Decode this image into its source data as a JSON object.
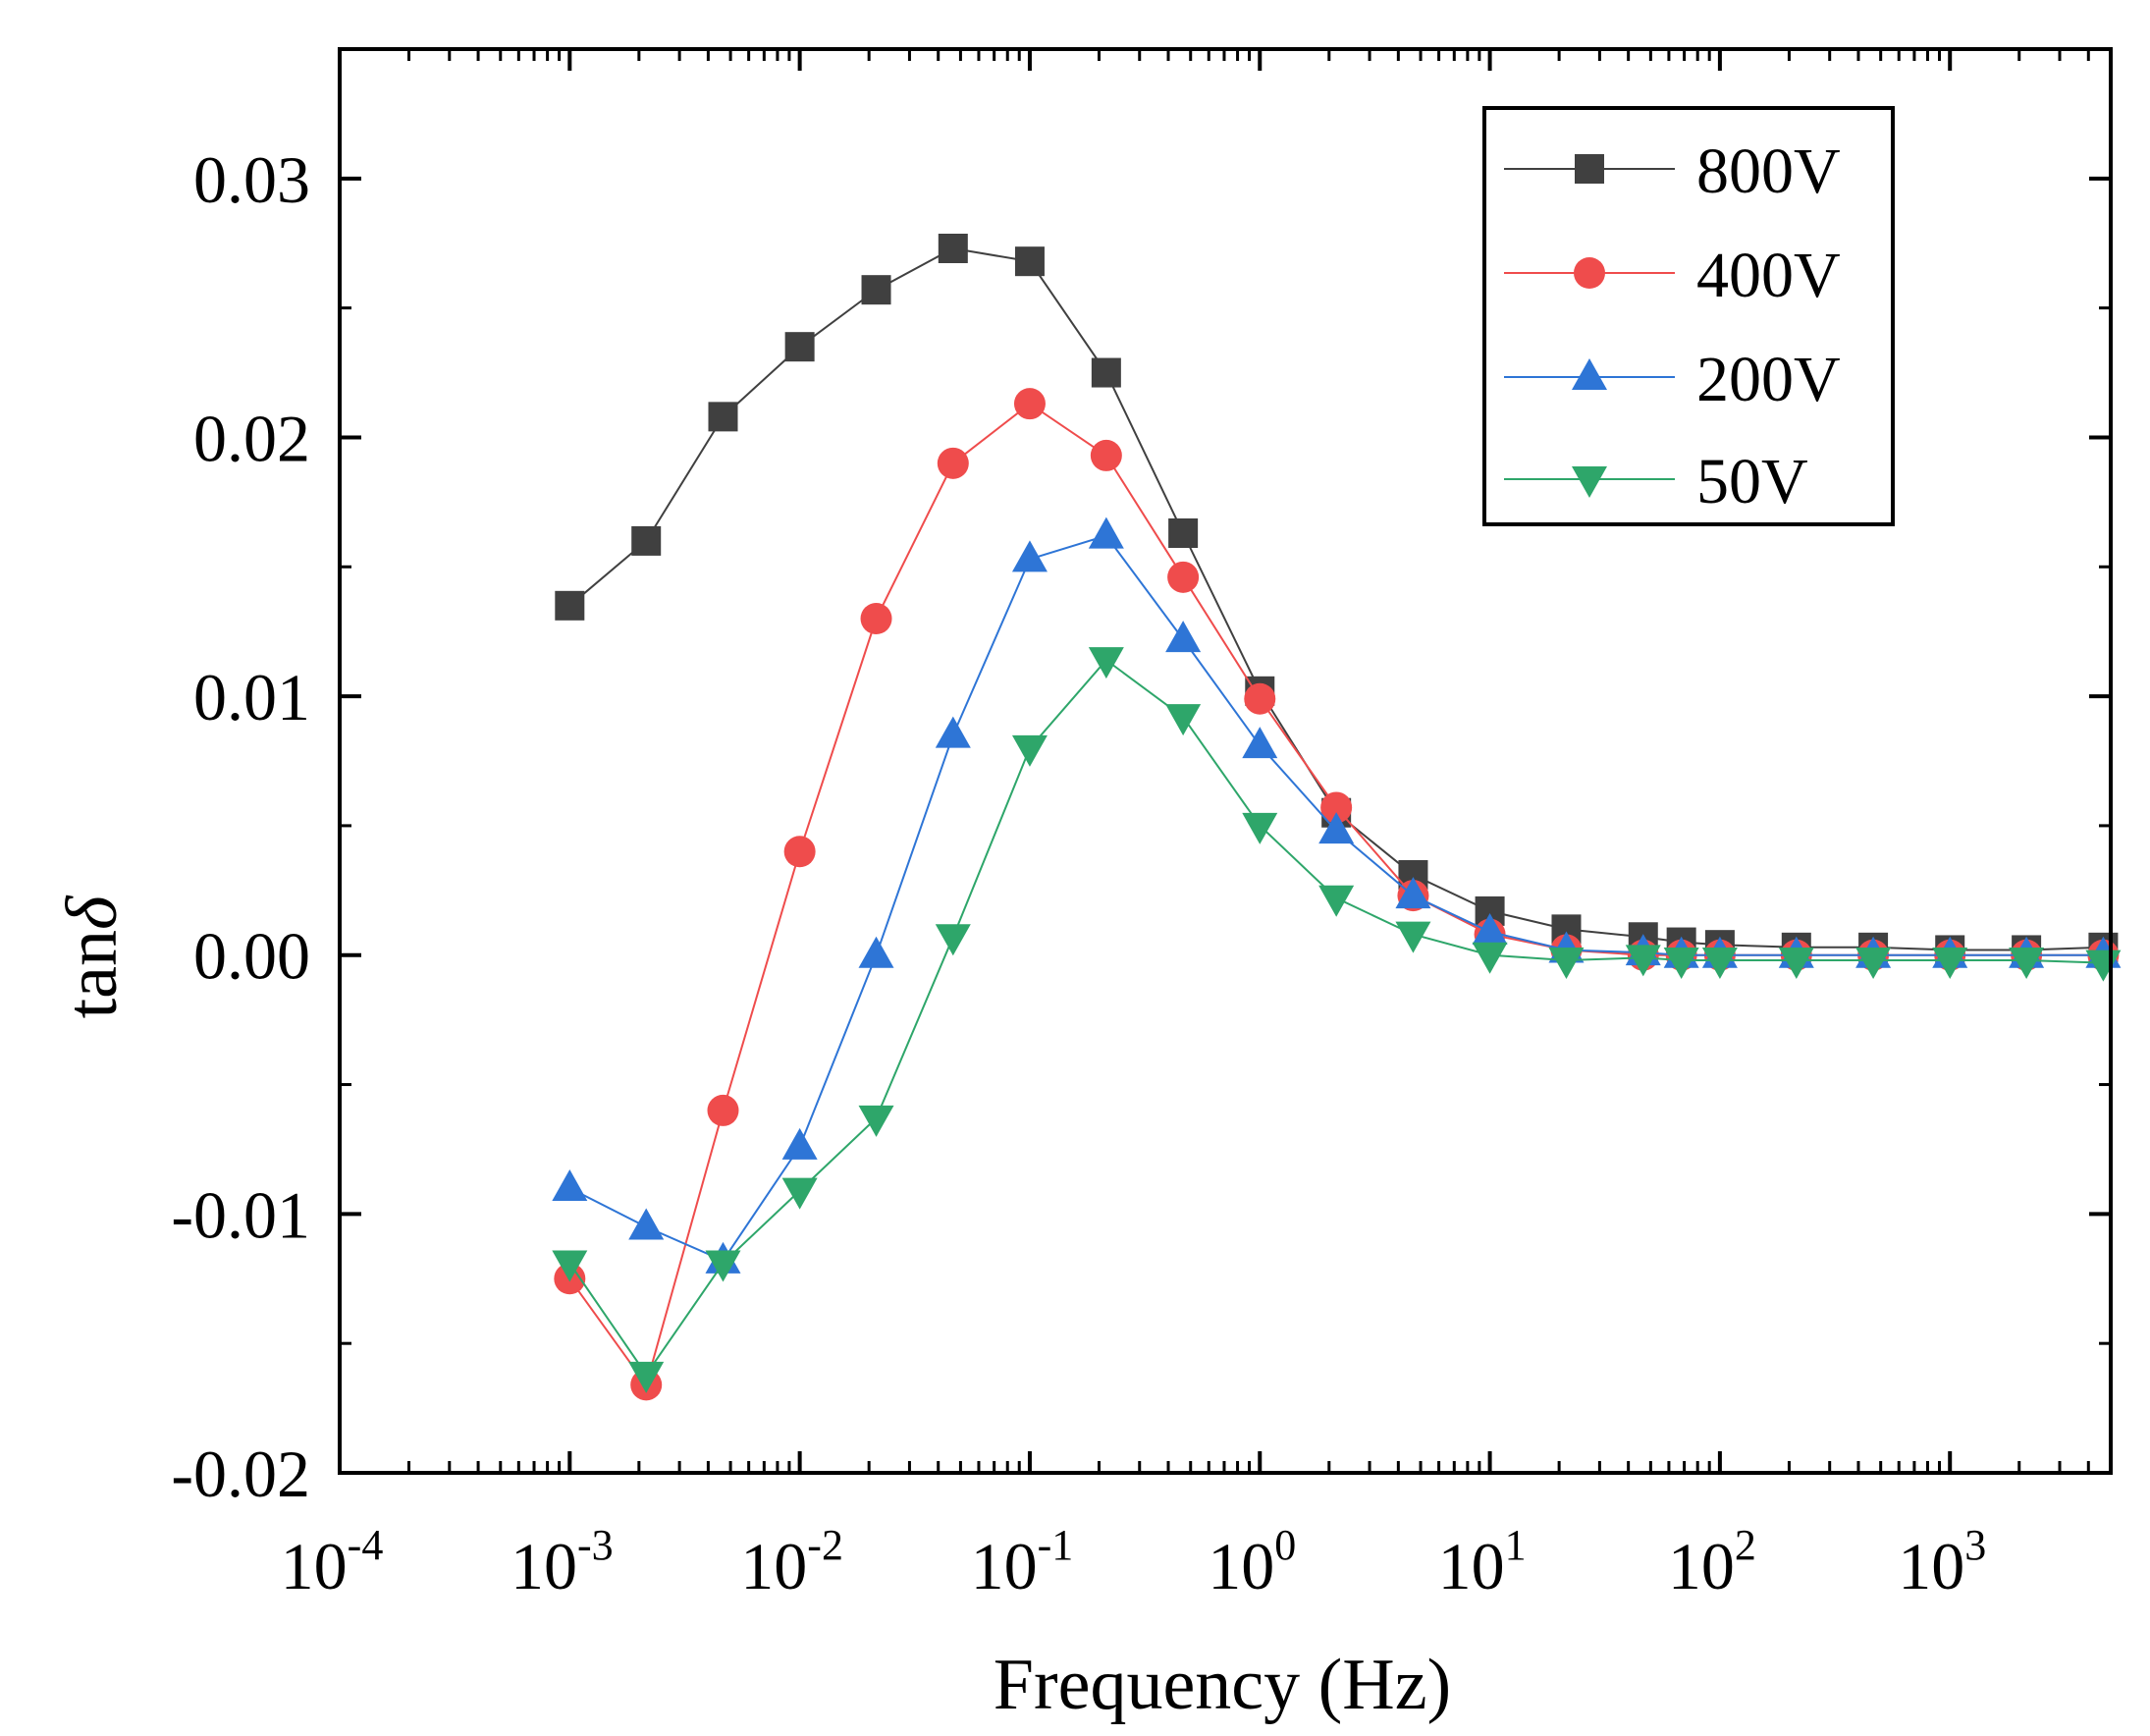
{
  "chart_data": {
    "type": "line",
    "xscale": "log",
    "xlabel": "Frequency (Hz)",
    "ylabel_main": "tan",
    "ylabel_italic": "δ",
    "xlim": [
      0.0001,
      5000
    ],
    "ylim": [
      -0.02,
      0.035
    ],
    "yticks": [
      {
        "value": -0.02,
        "label": "-0.02"
      },
      {
        "value": -0.01,
        "label": "-0.01"
      },
      {
        "value": 0.0,
        "label": "0.00"
      },
      {
        "value": 0.01,
        "label": "0.01"
      },
      {
        "value": 0.02,
        "label": "0.02"
      },
      {
        "value": 0.03,
        "label": "0.03"
      }
    ],
    "xticks": [
      {
        "value": 0.0001,
        "base": "10",
        "exp": "-4"
      },
      {
        "value": 0.001,
        "base": "10",
        "exp": "-3"
      },
      {
        "value": 0.01,
        "base": "10",
        "exp": "-2"
      },
      {
        "value": 0.1,
        "base": "10",
        "exp": "-1"
      },
      {
        "value": 1,
        "base": "10",
        "exp": "0"
      },
      {
        "value": 10,
        "base": "10",
        "exp": "1"
      },
      {
        "value": 100,
        "base": "10",
        "exp": "2"
      },
      {
        "value": 1000,
        "base": "10",
        "exp": "3"
      }
    ],
    "x": [
      0.001,
      0.00215,
      0.00464,
      0.01,
      0.0215,
      0.0464,
      0.1,
      0.215,
      0.464,
      1,
      2.15,
      4.64,
      10,
      21.5,
      46.4,
      68,
      100,
      215,
      464,
      1000,
      2150,
      4640
    ],
    "legend_position": "top-right",
    "series": [
      {
        "name": "800V",
        "color": "#404040",
        "marker": "square",
        "values": [
          0.0135,
          0.016,
          0.0208,
          0.0235,
          0.0257,
          0.0273,
          0.0268,
          0.0225,
          0.0163,
          0.0102,
          0.0055,
          0.0031,
          0.0017,
          0.001,
          0.0007,
          0.0005,
          0.0004,
          0.0003,
          0.0003,
          0.0002,
          0.0002,
          0.0003
        ]
      },
      {
        "name": "400V",
        "color": "#ef4c4c",
        "marker": "circle",
        "values": [
          -0.0125,
          -0.0166,
          -0.006,
          0.004,
          0.013,
          0.019,
          0.0213,
          0.0193,
          0.0146,
          0.0099,
          0.0057,
          0.0023,
          0.0008,
          0.0002,
          0.0,
          0.0,
          0.0,
          0.0,
          0.0,
          0.0,
          0.0,
          0.0
        ]
      },
      {
        "name": "200V",
        "color": "#2e75d6",
        "marker": "triangle-up",
        "values": [
          -0.009,
          -0.0105,
          -0.0118,
          -0.0074,
          0.0,
          0.0085,
          0.0153,
          0.0162,
          0.0122,
          0.0081,
          0.0048,
          0.0023,
          0.0009,
          0.0002,
          0.0001,
          0.0,
          0.0,
          0.0,
          0.0,
          0.0,
          0.0,
          0.0
        ]
      },
      {
        "name": "50V",
        "color": "#2ea66a",
        "marker": "triangle-down",
        "values": [
          -0.0119,
          -0.0162,
          -0.0119,
          -0.0091,
          -0.0063,
          0.0007,
          0.008,
          0.0114,
          0.0092,
          0.005,
          0.0022,
          0.0008,
          0.0,
          -0.0002,
          -0.0001,
          -0.0002,
          -0.0002,
          -0.0002,
          -0.0002,
          -0.0002,
          -0.0002,
          -0.0003
        ]
      }
    ]
  }
}
